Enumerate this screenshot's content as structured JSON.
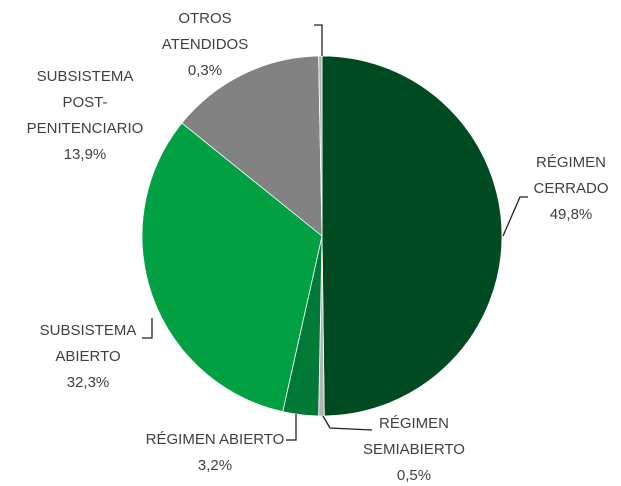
{
  "chart_data": {
    "type": "pie",
    "categories": [
      "RÉGIMEN\nCERRADO",
      "RÉGIMEN\nSEMIABIERTO",
      "RÉGIMEN ABIERTO",
      "SUBSISTEMA\nABIERTO",
      "SUBSISTEMA\nPOST-\nPENITENCIARIO",
      "OTROS\nATENDIDOS"
    ],
    "values": [
      49.8,
      0.5,
      3.2,
      32.3,
      13.9,
      0.3
    ],
    "value_labels": [
      "49,8%",
      "0,5%",
      "3,2%",
      "32,3%",
      "13,9%",
      "0,3%"
    ],
    "colors": [
      "#004a22",
      "#b4b4b4",
      "#007a36",
      "#00a043",
      "#828282",
      "#b4b4b4"
    ]
  }
}
